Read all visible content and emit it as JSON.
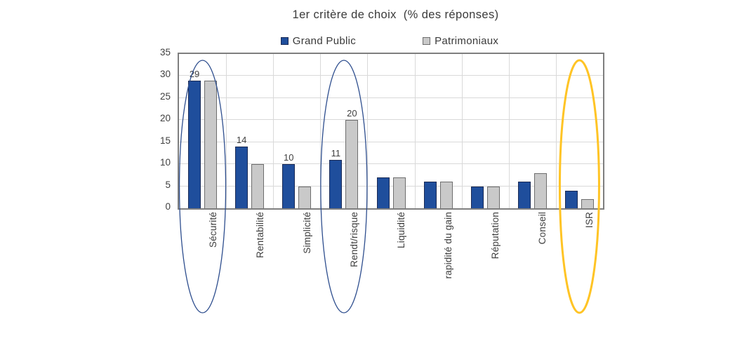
{
  "title": "1er critère de choix  (% des réponses)",
  "chart_data": {
    "type": "bar",
    "title": "1er critère de choix  (% des réponses)",
    "categories": [
      "Sécurité",
      "Rentabilité",
      "Simplicité",
      "Rendt/risque",
      "Liquidité",
      "rapidité du gain",
      "Réputation",
      "Conseil",
      "ISR"
    ],
    "series": [
      {
        "name": "Grand Public",
        "color": "#1F4E9C",
        "border_color": "#1b2b55",
        "values": [
          29,
          14,
          10,
          11,
          7,
          6,
          5,
          6,
          4
        ],
        "data_labels": [
          29,
          14,
          10,
          11,
          null,
          null,
          null,
          null,
          null
        ]
      },
      {
        "name": "Patrimoniaux",
        "color": "#C9C9C9",
        "border_color": "#6e6e6e",
        "values": [
          29,
          10,
          5,
          20,
          7,
          6,
          5,
          8,
          2
        ],
        "data_labels": [
          null,
          null,
          null,
          20,
          null,
          null,
          null,
          null,
          null
        ]
      }
    ],
    "shown_point_labels": [
      {
        "category": "Sécurité",
        "series": "Grand Public",
        "value": 29
      },
      {
        "category": "Rentabilité",
        "series": "Grand Public",
        "value": 14
      },
      {
        "category": "Simplicité",
        "series": "Grand Public",
        "value": 10
      },
      {
        "category": "Rendt/risque",
        "series": "Grand Public",
        "value": 11
      },
      {
        "category": "Rendt/risque",
        "series": "Patrimoniaux",
        "value": 20
      },
      {
        "category": "Liquidité",
        "series": "Grand Public",
        "value": 7
      },
      {
        "category": "rapidité du gain",
        "series": "Grand Public",
        "value": 6
      },
      {
        "category": "Réputation",
        "series": "Grand Public",
        "value": 5
      },
      {
        "category": "Conseil",
        "series": "Grand Public",
        "value": 6
      },
      {
        "category": "ISR",
        "series": "Grand Public",
        "value": 4
      }
    ],
    "xlabel": "",
    "ylabel": "",
    "ylim": [
      0,
      35
    ],
    "yticks": [
      0,
      5,
      10,
      15,
      20,
      25,
      30,
      35
    ],
    "grid": true,
    "legend_position": "top",
    "highlights": [
      {
        "category": "Sécurité",
        "index": 0,
        "color": "#2E4E8E",
        "stroke_width": 1.3
      },
      {
        "category": "Rendt/risque",
        "index": 3,
        "color": "#2E4E8E",
        "stroke_width": 1.3
      },
      {
        "category": "ISR",
        "index": 8,
        "color": "#FFC425",
        "stroke_width": 3
      }
    ]
  }
}
